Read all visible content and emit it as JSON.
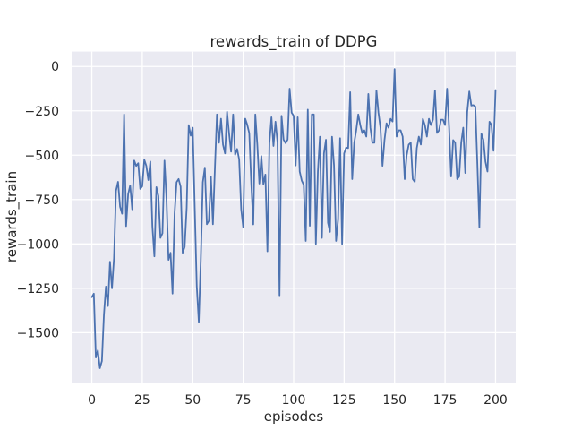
{
  "chart_data": {
    "type": "line",
    "title": "rewards_train of DDPG",
    "xlabel": "episodes",
    "ylabel": "rewards_train",
    "x0": 0,
    "dx": 1,
    "xlim": [
      -10,
      210
    ],
    "ylim": [
      -1782,
      84
    ],
    "xticks": [
      0,
      25,
      50,
      75,
      100,
      125,
      150,
      175,
      200
    ],
    "yticks": [
      0,
      -250,
      -500,
      -750,
      -1000,
      -1250,
      -1500
    ],
    "grid": true,
    "legend": null,
    "line_color": "#4c72b0",
    "line_width": 1.8,
    "plot_bg": "#eaeaf2",
    "grid_color": "#ffffff",
    "tick_color": "#262626",
    "series": [
      {
        "name": "rewards_train",
        "values": [
          -1300,
          -1280,
          -1640,
          -1600,
          -1700,
          -1660,
          -1400,
          -1240,
          -1350,
          -1100,
          -1250,
          -1080,
          -700,
          -650,
          -790,
          -830,
          -270,
          -900,
          -720,
          -670,
          -805,
          -530,
          -560,
          -545,
          -690,
          -675,
          -525,
          -560,
          -640,
          -536,
          -900,
          -1070,
          -680,
          -730,
          -966,
          -940,
          -530,
          -745,
          -1090,
          -1050,
          -1280,
          -830,
          -652,
          -634,
          -677,
          -1050,
          -1017,
          -796,
          -330,
          -390,
          -345,
          -800,
          -1240,
          -1440,
          -1090,
          -652,
          -570,
          -889,
          -870,
          -620,
          -889,
          -570,
          -270,
          -430,
          -294,
          -441,
          -490,
          -255,
          -376,
          -480,
          -270,
          -498,
          -465,
          -524,
          -805,
          -906,
          -294,
          -328,
          -376,
          -660,
          -890,
          -270,
          -440,
          -660,
          -505,
          -663,
          -609,
          -1042,
          -432,
          -286,
          -448,
          -311,
          -427,
          -1290,
          -278,
          -412,
          -432,
          -412,
          -125,
          -260,
          -278,
          -558,
          -286,
          -592,
          -643,
          -668,
          -983,
          -243,
          -898,
          -270,
          -270,
          -1000,
          -592,
          -396,
          -966,
          -490,
          -413,
          -881,
          -932,
          -396,
          -558,
          -983,
          -864,
          -404,
          -1000,
          -490,
          -457,
          -460,
          -145,
          -635,
          -430,
          -360,
          -270,
          -330,
          -376,
          -360,
          -395,
          -155,
          -345,
          -430,
          -430,
          -135,
          -260,
          -345,
          -560,
          -415,
          -320,
          -345,
          -295,
          -310,
          -15,
          -395,
          -360,
          -360,
          -395,
          -635,
          -500,
          -440,
          -430,
          -635,
          -650,
          -460,
          -395,
          -440,
          -295,
          -330,
          -395,
          -295,
          -330,
          -300,
          -135,
          -375,
          -360,
          -300,
          -300,
          -330,
          -125,
          -345,
          -620,
          -415,
          -430,
          -635,
          -620,
          -430,
          -345,
          -600,
          -255,
          -141,
          -220,
          -218,
          -226,
          -550,
          -906,
          -379,
          -413,
          -536,
          -592,
          -311,
          -329,
          -475,
          -133
        ]
      }
    ]
  }
}
